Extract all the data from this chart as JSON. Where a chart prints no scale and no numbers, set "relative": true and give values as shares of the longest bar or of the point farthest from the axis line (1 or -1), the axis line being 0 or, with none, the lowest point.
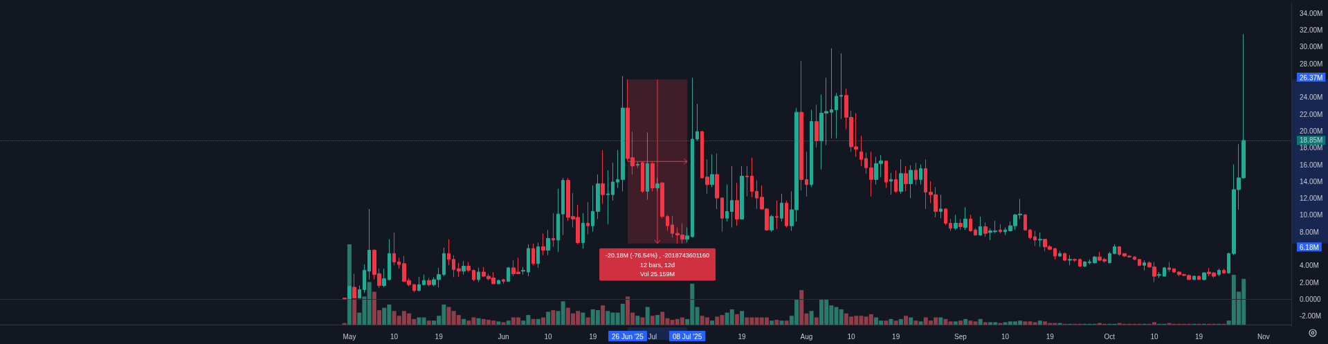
{
  "chart_data": [
    {
      "type": "candlestick",
      "x": [
        "2025-04-30",
        "2025-05-01",
        "2025-05-02",
        "2025-05-03",
        "2025-05-04",
        "2025-05-05",
        "2025-05-06",
        "2025-05-07",
        "2025-05-08",
        "2025-05-09",
        "2025-05-10",
        "2025-05-11",
        "2025-05-12",
        "2025-05-13",
        "2025-05-14",
        "2025-05-15",
        "2025-05-16",
        "2025-05-17",
        "2025-05-18",
        "2025-05-19",
        "2025-05-20",
        "2025-05-21",
        "2025-05-22",
        "2025-05-23",
        "2025-05-24",
        "2025-05-25",
        "2025-05-26",
        "2025-05-27",
        "2025-05-28",
        "2025-05-29",
        "2025-05-30",
        "2025-05-31",
        "2025-06-01",
        "2025-06-02",
        "2025-06-03",
        "2025-06-04",
        "2025-06-05",
        "2025-06-06",
        "2025-06-07",
        "2025-06-08",
        "2025-06-09",
        "2025-06-10",
        "2025-06-11",
        "2025-06-12",
        "2025-06-13",
        "2025-06-14",
        "2025-06-15",
        "2025-06-16",
        "2025-06-17",
        "2025-06-18",
        "2025-06-19",
        "2025-06-20",
        "2025-06-21",
        "2025-06-22",
        "2025-06-23",
        "2025-06-24",
        "2025-06-25",
        "2025-06-26",
        "2025-06-27",
        "2025-06-28",
        "2025-06-29",
        "2025-06-30",
        "2025-07-01",
        "2025-07-02",
        "2025-07-03",
        "2025-07-04",
        "2025-07-05",
        "2025-07-06",
        "2025-07-07",
        "2025-07-08",
        "2025-07-09",
        "2025-07-10",
        "2025-07-11",
        "2025-07-12",
        "2025-07-13",
        "2025-07-14",
        "2025-07-15",
        "2025-07-16",
        "2025-07-17",
        "2025-07-18",
        "2025-07-19",
        "2025-07-20",
        "2025-07-21",
        "2025-07-22",
        "2025-07-23",
        "2025-07-24",
        "2025-07-25",
        "2025-07-26",
        "2025-07-27",
        "2025-07-28",
        "2025-07-29",
        "2025-07-30",
        "2025-07-31",
        "2025-08-01",
        "2025-08-02",
        "2025-08-03",
        "2025-08-04",
        "2025-08-05",
        "2025-08-06",
        "2025-08-07",
        "2025-08-08",
        "2025-08-09",
        "2025-08-10",
        "2025-08-11",
        "2025-08-12",
        "2025-08-13",
        "2025-08-14",
        "2025-08-15",
        "2025-08-16",
        "2025-08-17",
        "2025-08-18",
        "2025-08-19",
        "2025-08-20",
        "2025-08-21",
        "2025-08-22",
        "2025-08-23",
        "2025-08-24",
        "2025-08-25",
        "2025-08-26",
        "2025-08-27",
        "2025-08-28",
        "2025-08-29",
        "2025-08-30",
        "2025-08-31",
        "2025-09-01",
        "2025-09-02",
        "2025-09-03",
        "2025-09-04",
        "2025-09-05",
        "2025-09-06",
        "2025-09-07",
        "2025-09-08",
        "2025-09-09",
        "2025-09-10",
        "2025-09-11",
        "2025-09-12",
        "2025-09-13",
        "2025-09-14",
        "2025-09-15",
        "2025-09-16",
        "2025-09-17",
        "2025-09-18",
        "2025-09-19",
        "2025-09-20",
        "2025-09-21",
        "2025-09-22",
        "2025-09-23",
        "2025-09-24",
        "2025-09-25",
        "2025-09-26",
        "2025-09-27",
        "2025-09-28",
        "2025-09-29",
        "2025-09-30",
        "2025-10-01",
        "2025-10-02",
        "2025-10-03",
        "2025-10-04",
        "2025-10-05",
        "2025-10-06",
        "2025-10-07",
        "2025-10-08",
        "2025-10-09",
        "2025-10-10",
        "2025-10-11",
        "2025-10-12",
        "2025-10-13",
        "2025-10-14",
        "2025-10-15",
        "2025-10-16",
        "2025-10-17",
        "2025-10-18",
        "2025-10-19",
        "2025-10-20",
        "2025-10-21",
        "2025-10-22",
        "2025-10-23",
        "2025-10-24",
        "2025-10-25",
        "2025-10-26",
        "2025-10-27",
        "2025-10-28"
      ],
      "ohlc": [
        [
          0.1,
          0.1,
          0.0,
          0.0
        ],
        [
          0.0,
          1.6,
          0.0,
          1.5
        ],
        [
          1.4,
          3.0,
          0.1,
          0.1
        ],
        [
          0.1,
          1.6,
          0.1,
          1.1
        ],
        [
          1.1,
          4.1,
          0.7,
          3.4
        ],
        [
          3.3,
          10.7,
          2.3,
          5.8
        ],
        [
          5.8,
          5.9,
          2.3,
          2.9
        ],
        [
          3.0,
          3.6,
          1.3,
          1.6
        ],
        [
          1.6,
          3.6,
          1.4,
          2.4
        ],
        [
          2.3,
          7.1,
          2.2,
          5.4
        ],
        [
          5.4,
          7.9,
          4.0,
          4.4
        ],
        [
          4.4,
          4.9,
          3.6,
          4.1
        ],
        [
          4.2,
          5.1,
          2.0,
          2.1
        ],
        [
          2.2,
          2.5,
          1.5,
          1.7
        ],
        [
          1.7,
          1.8,
          0.8,
          1.0
        ],
        [
          1.0,
          2.6,
          0.9,
          1.7
        ],
        [
          1.7,
          2.9,
          1.6,
          2.2
        ],
        [
          2.2,
          2.5,
          1.5,
          1.7
        ],
        [
          1.7,
          2.6,
          1.5,
          2.3
        ],
        [
          2.3,
          3.7,
          1.4,
          2.9
        ],
        [
          2.9,
          6.1,
          2.7,
          5.4
        ],
        [
          5.4,
          7.1,
          4.0,
          4.7
        ],
        [
          4.7,
          5.2,
          2.6,
          3.5
        ],
        [
          3.6,
          4.3,
          2.6,
          3.3
        ],
        [
          3.3,
          4.5,
          2.9,
          3.9
        ],
        [
          3.9,
          4.4,
          3.2,
          3.4
        ],
        [
          3.4,
          3.5,
          2.1,
          2.3
        ],
        [
          2.3,
          3.7,
          2.0,
          3.2
        ],
        [
          3.2,
          3.8,
          2.6,
          2.7
        ],
        [
          2.7,
          3.0,
          2.2,
          2.4
        ],
        [
          2.5,
          3.2,
          1.8,
          1.8
        ],
        [
          1.8,
          2.3,
          1.8,
          2.2
        ],
        [
          2.3,
          2.4,
          1.8,
          2.1
        ],
        [
          2.1,
          3.8,
          2.1,
          3.7
        ],
        [
          3.7,
          4.6,
          2.7,
          3.0
        ],
        [
          3.2,
          4.9,
          3.0,
          3.0
        ],
        [
          3.3,
          3.8,
          2.9,
          3.4
        ],
        [
          3.2,
          6.5,
          2.7,
          6.0
        ],
        [
          6.0,
          6.6,
          4.0,
          4.2
        ],
        [
          4.2,
          6.7,
          3.7,
          6.2
        ],
        [
          6.2,
          7.8,
          5.2,
          5.8
        ],
        [
          5.8,
          8.2,
          5.2,
          7.2
        ],
        [
          7.2,
          10.2,
          6.2,
          7.0
        ],
        [
          7.0,
          13.1,
          5.6,
          10.1
        ],
        [
          10.1,
          14.4,
          7.6,
          14.1
        ],
        [
          14.1,
          14.4,
          9.3,
          9.7
        ],
        [
          9.8,
          12.6,
          8.5,
          9.5
        ],
        [
          9.7,
          11.2,
          6.5,
          6.7
        ],
        [
          6.7,
          10.2,
          6.0,
          9.0
        ],
        [
          9.0,
          11.5,
          7.7,
          8.7
        ],
        [
          8.7,
          13.5,
          8.0,
          10.4
        ],
        [
          10.4,
          14.8,
          9.5,
          13.7
        ],
        [
          13.7,
          17.7,
          11.3,
          12.4
        ],
        [
          12.4,
          15.3,
          8.9,
          12.5
        ],
        [
          12.4,
          16.2,
          11.7,
          13.9
        ],
        [
          13.9,
          17.7,
          13.2,
          14.2
        ],
        [
          14.2,
          26.5,
          12.8,
          22.7
        ],
        [
          22.7,
          26.1,
          16.4,
          16.7
        ],
        [
          16.8,
          19.9,
          14.8,
          15.8
        ],
        [
          15.9,
          16.3,
          15.6,
          16.0
        ],
        [
          16.2,
          16.3,
          12.6,
          12.8
        ],
        [
          12.8,
          19.8,
          11.8,
          16.1
        ],
        [
          16.1,
          16.3,
          12.8,
          13.2
        ],
        [
          13.2,
          14.4,
          12.8,
          13.7
        ],
        [
          13.8,
          13.9,
          9.6,
          9.8
        ],
        [
          9.8,
          10.0,
          8.1,
          8.7
        ],
        [
          8.8,
          9.9,
          7.3,
          7.8
        ],
        [
          7.8,
          8.5,
          6.6,
          7.6
        ],
        [
          7.6,
          9.0,
          6.6,
          7.1
        ],
        [
          7.1,
          8.5,
          6.7,
          7.5
        ],
        [
          7.4,
          26.3,
          7.3,
          19.0
        ],
        [
          19.0,
          23.2,
          18.8,
          19.9
        ],
        [
          19.9,
          20.0,
          14.3,
          14.4
        ],
        [
          14.5,
          16.6,
          12.5,
          13.6
        ],
        [
          13.6,
          17.2,
          13.3,
          14.8
        ],
        [
          14.8,
          17.3,
          10.7,
          12.0
        ],
        [
          12.0,
          12.1,
          8.0,
          9.6
        ],
        [
          9.6,
          13.6,
          9.2,
          10.4
        ],
        [
          10.4,
          15.8,
          8.5,
          11.7
        ],
        [
          11.7,
          13.8,
          8.7,
          9.5
        ],
        [
          9.5,
          15.8,
          9.5,
          14.6
        ],
        [
          14.6,
          15.8,
          12.2,
          14.5
        ],
        [
          14.6,
          16.8,
          12.1,
          12.8
        ],
        [
          12.8,
          14.1,
          10.7,
          12.0
        ],
        [
          12.1,
          13.5,
          10.6,
          10.7
        ],
        [
          10.7,
          10.8,
          8.1,
          8.2
        ],
        [
          8.2,
          10.0,
          8.0,
          9.8
        ],
        [
          9.8,
          11.7,
          8.3,
          9.7
        ],
        [
          9.6,
          12.5,
          9.2,
          11.4
        ],
        [
          11.4,
          11.7,
          8.5,
          8.7
        ],
        [
          8.7,
          12.8,
          8.1,
          10.6
        ],
        [
          10.6,
          22.7,
          9.2,
          22.2
        ],
        [
          22.2,
          28.3,
          12.9,
          14.2
        ],
        [
          14.2,
          17.5,
          12.2,
          13.6
        ],
        [
          13.6,
          22.5,
          13.3,
          21.1
        ],
        [
          21.1,
          23.1,
          18.0,
          18.8
        ],
        [
          18.8,
          24.3,
          15.4,
          22.1
        ],
        [
          22.1,
          26.3,
          18.3,
          22.3
        ],
        [
          22.2,
          29.8,
          19.1,
          22.5
        ],
        [
          22.5,
          24.5,
          19.1,
          24.1
        ],
        [
          24.1,
          29.2,
          21.4,
          24.2
        ],
        [
          24.2,
          25.0,
          20.2,
          21.6
        ],
        [
          21.6,
          22.4,
          17.5,
          18.1
        ],
        [
          18.1,
          22.1,
          16.9,
          17.8
        ],
        [
          17.5,
          19.4,
          15.8,
          16.6
        ],
        [
          16.7,
          17.4,
          14.9,
          15.6
        ],
        [
          15.6,
          17.5,
          12.2,
          14.2
        ],
        [
          14.2,
          16.9,
          13.6,
          16.1
        ],
        [
          16.1,
          17.1,
          14.5,
          16.4
        ],
        [
          16.4,
          16.4,
          13.2,
          13.9
        ],
        [
          14.0,
          15.0,
          12.4,
          14.2
        ],
        [
          14.2,
          15.3,
          12.6,
          12.8
        ],
        [
          12.8,
          16.6,
          12.5,
          14.9
        ],
        [
          14.9,
          15.8,
          12.8,
          13.7
        ],
        [
          13.7,
          15.9,
          12.0,
          15.3
        ],
        [
          15.3,
          16.2,
          13.6,
          14.2
        ],
        [
          14.2,
          16.0,
          13.6,
          15.5
        ],
        [
          15.5,
          16.6,
          10.7,
          12.7
        ],
        [
          12.7,
          14.0,
          11.4,
          12.4
        ],
        [
          12.4,
          13.3,
          9.7,
          10.4
        ],
        [
          10.4,
          12.4,
          9.6,
          10.7
        ],
        [
          10.7,
          10.8,
          8.8,
          9.0
        ],
        [
          9.0,
          9.5,
          8.1,
          8.4
        ],
        [
          8.4,
          10.0,
          8.2,
          9.0
        ],
        [
          9.0,
          9.5,
          8.2,
          8.6
        ],
        [
          8.5,
          10.9,
          8.2,
          9.5
        ],
        [
          9.5,
          10.0,
          8.0,
          8.1
        ],
        [
          8.2,
          8.4,
          7.5,
          7.6
        ],
        [
          7.6,
          9.8,
          7.5,
          8.6
        ],
        [
          8.6,
          9.1,
          7.4,
          7.8
        ],
        [
          7.9,
          8.4,
          7.0,
          8.1
        ],
        [
          8.0,
          9.3,
          7.8,
          8.1
        ],
        [
          8.2,
          8.9,
          7.8,
          8.0
        ],
        [
          8.0,
          8.5,
          7.6,
          8.2
        ],
        [
          8.1,
          9.2,
          8.0,
          8.7
        ],
        [
          8.7,
          10.1,
          8.2,
          10.0
        ],
        [
          10.0,
          11.9,
          9.5,
          10.1
        ],
        [
          10.0,
          10.1,
          8.1,
          8.2
        ],
        [
          8.2,
          8.3,
          7.1,
          7.3
        ],
        [
          7.4,
          8.1,
          6.3,
          7.0
        ],
        [
          7.0,
          7.9,
          6.2,
          7.1
        ],
        [
          7.1,
          7.1,
          5.7,
          6.2
        ],
        [
          6.2,
          6.4,
          5.8,
          5.9
        ],
        [
          6.0,
          6.0,
          4.7,
          5.1
        ],
        [
          5.1,
          5.7,
          5.0,
          5.4
        ],
        [
          5.4,
          5.5,
          4.5,
          4.6
        ],
        [
          4.6,
          5.2,
          4.0,
          4.7
        ],
        [
          4.7,
          4.8,
          4.4,
          4.6
        ],
        [
          4.7,
          4.8,
          3.8,
          3.9
        ],
        [
          3.9,
          4.5,
          3.8,
          4.4
        ],
        [
          4.3,
          4.7,
          4.1,
          4.4
        ],
        [
          4.3,
          5.1,
          4.2,
          5.0
        ],
        [
          5.0,
          5.6,
          4.5,
          4.6
        ],
        [
          4.7,
          4.9,
          4.3,
          4.5
        ],
        [
          4.3,
          5.6,
          4.2,
          5.4
        ],
        [
          5.4,
          6.5,
          5.3,
          6.2
        ],
        [
          6.2,
          6.3,
          5.1,
          5.3
        ],
        [
          5.4,
          5.4,
          5.0,
          5.1
        ],
        [
          5.1,
          5.2,
          4.9,
          5.0
        ],
        [
          5.0,
          5.1,
          4.6,
          4.7
        ],
        [
          4.7,
          4.7,
          3.9,
          4.0
        ],
        [
          4.0,
          4.6,
          3.4,
          4.3
        ],
        [
          4.3,
          4.5,
          3.7,
          3.8
        ],
        [
          3.8,
          4.4,
          2.0,
          2.7
        ],
        [
          2.8,
          3.2,
          2.5,
          2.9
        ],
        [
          2.7,
          3.8,
          2.7,
          3.7
        ],
        [
          3.7,
          4.4,
          3.2,
          3.5
        ],
        [
          3.6,
          3.6,
          3.1,
          3.2
        ],
        [
          3.2,
          3.3,
          2.7,
          2.9
        ],
        [
          2.9,
          3.0,
          2.7,
          2.8
        ],
        [
          2.8,
          2.9,
          2.3,
          2.3
        ],
        [
          2.3,
          2.8,
          2.3,
          2.7
        ],
        [
          2.7,
          2.8,
          2.3,
          2.3
        ],
        [
          2.3,
          3.2,
          2.2,
          3.1
        ],
        [
          3.2,
          3.7,
          2.7,
          3.0
        ],
        [
          3.1,
          3.2,
          2.5,
          2.7
        ],
        [
          2.9,
          3.6,
          2.7,
          3.4
        ],
        [
          3.4,
          3.6,
          3.0,
          3.1
        ],
        [
          3.1,
          5.5,
          3.0,
          5.4
        ],
        [
          5.4,
          16.0,
          5.2,
          13.0
        ],
        [
          13.0,
          18.4,
          10.6,
          14.4
        ],
        [
          14.4,
          31.5,
          14.3,
          18.85
        ]
      ],
      "colors": [
        "#f23645",
        "#22ab94",
        "#f23645",
        "#22ab94",
        "#22ab94",
        "#22ab94",
        "#f23645",
        "#f23645",
        "#22ab94",
        "#22ab94",
        "#f23645",
        "#f23645",
        "#f23645",
        "#f23645",
        "#f23645",
        "#22ab94",
        "#22ab94",
        "#f23645",
        "#22ab94",
        "#22ab94",
        "#22ab94",
        "#f23645",
        "#f23645",
        "#f23645",
        "#22ab94",
        "#f23645",
        "#f23645",
        "#22ab94",
        "#f23645",
        "#f23645",
        "#f23645",
        "#22ab94",
        "#f23645",
        "#22ab94",
        "#f23645",
        "#f23645",
        "#22ab94",
        "#22ab94",
        "#f23645",
        "#22ab94",
        "#f23645",
        "#22ab94",
        "#f23645",
        "#22ab94",
        "#22ab94",
        "#f23645",
        "#f23645",
        "#f23645",
        "#22ab94",
        "#f23645",
        "#22ab94",
        "#22ab94",
        "#f23645",
        "#22ab94",
        "#22ab94",
        "#22ab94",
        "#22ab94",
        "#f23645",
        "#f23645",
        "#22ab94",
        "#f23645",
        "#22ab94",
        "#f23645",
        "#22ab94",
        "#f23645",
        "#f23645",
        "#f23645",
        "#f23645",
        "#f23645",
        "#22ab94",
        "#22ab94",
        "#22ab94",
        "#f23645",
        "#f23645",
        "#22ab94",
        "#f23645",
        "#f23645",
        "#22ab94",
        "#22ab94",
        "#f23645",
        "#22ab94",
        "#f23645",
        "#f23645",
        "#f23645",
        "#f23645",
        "#f23645",
        "#22ab94",
        "#f23645",
        "#22ab94",
        "#f23645",
        "#22ab94",
        "#22ab94",
        "#f23645",
        "#f23645",
        "#22ab94",
        "#f23645",
        "#22ab94",
        "#22ab94",
        "#22ab94",
        "#22ab94",
        "#22ab94",
        "#f23645",
        "#f23645",
        "#f23645",
        "#f23645",
        "#f23645",
        "#f23645",
        "#22ab94",
        "#22ab94",
        "#f23645",
        "#22ab94",
        "#f23645",
        "#22ab94",
        "#f23645",
        "#22ab94",
        "#f23645",
        "#22ab94",
        "#f23645",
        "#f23645",
        "#f23645",
        "#22ab94",
        "#f23645",
        "#f23645",
        "#22ab94",
        "#f23645",
        "#22ab94",
        "#f23645",
        "#f23645",
        "#22ab94",
        "#f23645",
        "#22ab94",
        "#22ab94",
        "#f23645",
        "#22ab94",
        "#22ab94",
        "#22ab94",
        "#22ab94",
        "#f23645",
        "#f23645",
        "#f23645",
        "#22ab94",
        "#f23645",
        "#f23645",
        "#f23645",
        "#22ab94",
        "#f23645",
        "#22ab94",
        "#f23645",
        "#f23645",
        "#22ab94",
        "#22ab94",
        "#22ab94",
        "#f23645",
        "#f23645",
        "#22ab94",
        "#22ab94",
        "#f23645",
        "#f23645",
        "#f23645",
        "#f23645",
        "#f23645",
        "#22ab94",
        "#f23645",
        "#f23645",
        "#22ab94",
        "#22ab94",
        "#f23645",
        "#f23645",
        "#f23645",
        "#f23645",
        "#f23645",
        "#22ab94",
        "#f23645",
        "#22ab94",
        "#f23645",
        "#f23645",
        "#22ab94",
        "#f23645",
        "#22ab94",
        "#22ab94",
        "#22ab94",
        "#22ab94"
      ],
      "xlim": [
        "2025-02-19T16:00",
        "2025-11-06T14:00"
      ],
      "xticks": [
        {
          "value": "2025-05-01",
          "label": "May"
        },
        {
          "value": "2025-05-10",
          "label": "10"
        },
        {
          "value": "2025-05-19",
          "label": "19"
        },
        {
          "value": "2025-06-01",
          "label": "Jun"
        },
        {
          "value": "2025-06-10",
          "label": "10"
        },
        {
          "value": "2025-06-19",
          "label": "19"
        },
        {
          "value": "2025-06-26",
          "label": "26 Jun '25"
        },
        {
          "value": "2025-07-01",
          "label": "Jul"
        },
        {
          "value": "2025-07-08",
          "label": "08 Jul '25"
        },
        {
          "value": "2025-07-19",
          "label": "19"
        },
        {
          "value": "2025-08-01",
          "label": "Aug"
        },
        {
          "value": "2025-08-10",
          "label": "10"
        },
        {
          "value": "2025-08-19",
          "label": "19"
        },
        {
          "value": "2025-09-01",
          "label": "Sep"
        },
        {
          "value": "2025-09-10",
          "label": "10"
        },
        {
          "value": "2025-09-19",
          "label": "19"
        },
        {
          "value": "2025-10-01",
          "label": "Oct"
        },
        {
          "value": "2025-10-10",
          "label": "10"
        },
        {
          "value": "2025-10-19",
          "label": "19"
        },
        {
          "value": "2025-11-01",
          "label": "Nov"
        }
      ],
      "ylim": [
        -3.3,
        35.3
      ],
      "yticks": [
        {
          "value": -2,
          "label": "-2.00M"
        },
        {
          "value": 0,
          "label": "0.0000"
        },
        {
          "value": 2,
          "label": "2.00M"
        },
        {
          "value": 4,
          "label": "4.00M"
        },
        {
          "value": 6.18,
          "label": "6.18M"
        },
        {
          "value": 8,
          "label": "8.00M"
        },
        {
          "value": 10,
          "label": "10.00M"
        },
        {
          "value": 12,
          "label": "12.00M"
        },
        {
          "value": 14,
          "label": "14.00M"
        },
        {
          "value": 16,
          "label": "16.00M"
        },
        {
          "value": 18,
          "label": "18.00M"
        },
        {
          "value": 20,
          "label": "20.00M"
        },
        {
          "value": 22,
          "label": "22.00M"
        },
        {
          "value": 24,
          "label": "24.00M"
        },
        {
          "value": 26.37,
          "label": "26.37M"
        },
        {
          "value": 28,
          "label": "28.00M"
        },
        {
          "value": 30,
          "label": "30.00M"
        },
        {
          "value": 32,
          "label": "32.00M"
        },
        {
          "value": 34,
          "label": "34.00M"
        }
      ],
      "ref_lines": [
        {
          "axis": "y",
          "value": 18.85,
          "label": "18.85M",
          "color": "#089981",
          "line_style": "dotted"
        }
      ],
      "bands": [
        {
          "axis": "x",
          "from": "2025-06-26",
          "to": "2025-07-08",
          "color": "#f23645"
        }
      ],
      "annotations": [
        "-20.18M (-76.54%) , -2018743601160",
        "12 bars, 12d",
        "Vol 25.159M"
      ]
    },
    {
      "type": "bar",
      "relative": true,
      "tick_labels": false,
      "x": [
        "2025-04-30",
        "2025-05-01",
        "2025-05-02",
        "2025-05-03",
        "2025-05-04",
        "2025-05-05",
        "2025-05-06",
        "2025-05-07",
        "2025-05-08",
        "2025-05-09",
        "2025-05-10",
        "2025-05-11",
        "2025-05-12",
        "2025-05-13",
        "2025-05-14",
        "2025-05-15",
        "2025-05-16",
        "2025-05-17",
        "2025-05-18",
        "2025-05-19",
        "2025-05-20",
        "2025-05-21",
        "2025-05-22",
        "2025-05-23",
        "2025-05-24",
        "2025-05-25",
        "2025-05-26",
        "2025-05-27",
        "2025-05-28",
        "2025-05-29",
        "2025-05-30",
        "2025-05-31",
        "2025-06-01",
        "2025-06-02",
        "2025-06-03",
        "2025-06-04",
        "2025-06-05",
        "2025-06-06",
        "2025-06-07",
        "2025-06-08",
        "2025-06-09",
        "2025-06-10",
        "2025-06-11",
        "2025-06-12",
        "2025-06-13",
        "2025-06-14",
        "2025-06-15",
        "2025-06-16",
        "2025-06-17",
        "2025-06-18",
        "2025-06-19",
        "2025-06-20",
        "2025-06-21",
        "2025-06-22",
        "2025-06-23",
        "2025-06-24",
        "2025-06-25",
        "2025-06-26",
        "2025-06-27",
        "2025-06-28",
        "2025-06-29",
        "2025-06-30",
        "2025-07-01",
        "2025-07-02",
        "2025-07-03",
        "2025-07-04",
        "2025-07-05",
        "2025-07-06",
        "2025-07-07",
        "2025-07-08",
        "2025-07-09",
        "2025-07-10",
        "2025-07-11",
        "2025-07-12",
        "2025-07-13",
        "2025-07-14",
        "2025-07-15",
        "2025-07-16",
        "2025-07-17",
        "2025-07-18",
        "2025-07-19",
        "2025-07-20",
        "2025-07-21",
        "2025-07-22",
        "2025-07-23",
        "2025-07-24",
        "2025-07-25",
        "2025-07-26",
        "2025-07-27",
        "2025-07-28",
        "2025-07-29",
        "2025-07-30",
        "2025-07-31",
        "2025-08-01",
        "2025-08-02",
        "2025-08-03",
        "2025-08-04",
        "2025-08-05",
        "2025-08-06",
        "2025-08-07",
        "2025-08-08",
        "2025-08-09",
        "2025-08-10",
        "2025-08-11",
        "2025-08-12",
        "2025-08-13",
        "2025-08-14",
        "2025-08-15",
        "2025-08-16",
        "2025-08-17",
        "2025-08-18",
        "2025-08-19",
        "2025-08-20",
        "2025-08-21",
        "2025-08-22",
        "2025-08-23",
        "2025-08-24",
        "2025-08-25",
        "2025-08-26",
        "2025-08-27",
        "2025-08-28",
        "2025-08-29",
        "2025-08-30",
        "2025-08-31",
        "2025-09-01",
        "2025-09-02",
        "2025-09-03",
        "2025-09-04",
        "2025-09-05",
        "2025-09-06",
        "2025-09-07",
        "2025-09-08",
        "2025-09-09",
        "2025-09-10",
        "2025-09-11",
        "2025-09-12",
        "2025-09-13",
        "2025-09-14",
        "2025-09-15",
        "2025-09-16",
        "2025-09-17",
        "2025-09-18",
        "2025-09-19",
        "2025-09-20",
        "2025-09-21",
        "2025-09-22",
        "2025-09-23",
        "2025-09-24",
        "2025-09-25",
        "2025-09-26",
        "2025-09-27",
        "2025-09-28",
        "2025-09-29",
        "2025-09-30",
        "2025-10-01",
        "2025-10-02",
        "2025-10-03",
        "2025-10-04",
        "2025-10-05",
        "2025-10-06",
        "2025-10-07",
        "2025-10-08",
        "2025-10-09",
        "2025-10-10",
        "2025-10-11",
        "2025-10-12",
        "2025-10-13",
        "2025-10-14",
        "2025-10-15",
        "2025-10-16",
        "2025-10-17",
        "2025-10-18",
        "2025-10-19",
        "2025-10-20",
        "2025-10-21",
        "2025-10-22",
        "2025-10-23",
        "2025-10-24",
        "2025-10-25",
        "2025-10-26",
        "2025-10-27",
        "2025-10-28"
      ],
      "values": [
        0.02,
        1.0,
        0.32,
        0.15,
        0.35,
        0.53,
        0.41,
        0.18,
        0.21,
        0.25,
        0.17,
        0.11,
        0.17,
        0.14,
        0.07,
        0.09,
        0.09,
        0.05,
        0.05,
        0.11,
        0.25,
        0.22,
        0.17,
        0.12,
        0.07,
        0.05,
        0.09,
        0.08,
        0.07,
        0.06,
        0.05,
        0.04,
        0.03,
        0.05,
        0.09,
        0.09,
        0.05,
        0.12,
        0.07,
        0.07,
        0.09,
        0.16,
        0.18,
        0.17,
        0.29,
        0.21,
        0.14,
        0.17,
        0.15,
        0.09,
        0.19,
        0.18,
        0.24,
        0.17,
        0.15,
        0.15,
        0.26,
        0.35,
        0.15,
        0.11,
        0.09,
        0.22,
        0.11,
        0.12,
        0.16,
        0.08,
        0.06,
        0.07,
        0.09,
        0.07,
        0.51,
        0.22,
        0.11,
        0.09,
        0.05,
        0.1,
        0.12,
        0.15,
        0.19,
        0.13,
        0.17,
        0.09,
        0.09,
        0.09,
        0.09,
        0.09,
        0.05,
        0.06,
        0.05,
        0.05,
        0.11,
        0.31,
        0.43,
        0.14,
        0.17,
        0.09,
        0.31,
        0.31,
        0.24,
        0.22,
        0.19,
        0.14,
        0.1,
        0.11,
        0.11,
        0.1,
        0.13,
        0.09,
        0.05,
        0.05,
        0.07,
        0.05,
        0.07,
        0.11,
        0.09,
        0.05,
        0.04,
        0.09,
        0.05,
        0.09,
        0.09,
        0.07,
        0.04,
        0.04,
        0.05,
        0.07,
        0.05,
        0.04,
        0.07,
        0.03,
        0.03,
        0.03,
        0.02,
        0.03,
        0.04,
        0.04,
        0.05,
        0.04,
        0.04,
        0.03,
        0.05,
        0.04,
        0.02,
        0.02,
        0.02,
        0.01,
        0.01,
        0.01,
        0.01,
        0.01,
        0.01,
        0.01,
        0.02,
        0.01,
        0.01,
        0.01,
        0.02,
        0.01,
        0.01,
        0.01,
        0.01,
        0.01,
        0.01,
        0.03,
        0.01,
        0.01,
        0.02,
        0.01,
        0.01,
        0.01,
        0.01,
        0.01,
        0.01,
        0.01,
        0.01,
        0.01,
        0.01,
        0.01,
        0.05,
        0.62,
        0.41,
        0.57
      ],
      "colors": [
        "#8f3d49",
        "#2a7a6c",
        "#8f3d49",
        "#2a7a6c",
        "#2a7a6c",
        "#2a7a6c",
        "#8f3d49",
        "#8f3d49",
        "#2a7a6c",
        "#2a7a6c",
        "#8f3d49",
        "#8f3d49",
        "#8f3d49",
        "#8f3d49",
        "#8f3d49",
        "#2a7a6c",
        "#2a7a6c",
        "#8f3d49",
        "#2a7a6c",
        "#2a7a6c",
        "#2a7a6c",
        "#8f3d49",
        "#8f3d49",
        "#8f3d49",
        "#2a7a6c",
        "#8f3d49",
        "#8f3d49",
        "#2a7a6c",
        "#8f3d49",
        "#8f3d49",
        "#8f3d49",
        "#2a7a6c",
        "#8f3d49",
        "#2a7a6c",
        "#8f3d49",
        "#8f3d49",
        "#2a7a6c",
        "#2a7a6c",
        "#8f3d49",
        "#2a7a6c",
        "#8f3d49",
        "#2a7a6c",
        "#8f3d49",
        "#2a7a6c",
        "#2a7a6c",
        "#8f3d49",
        "#8f3d49",
        "#8f3d49",
        "#2a7a6c",
        "#8f3d49",
        "#2a7a6c",
        "#2a7a6c",
        "#8f3d49",
        "#2a7a6c",
        "#2a7a6c",
        "#2a7a6c",
        "#2a7a6c",
        "#8f3d49",
        "#8f3d49",
        "#2a7a6c",
        "#8f3d49",
        "#2a7a6c",
        "#8f3d49",
        "#2a7a6c",
        "#8f3d49",
        "#8f3d49",
        "#8f3d49",
        "#8f3d49",
        "#8f3d49",
        "#2a7a6c",
        "#2a7a6c",
        "#2a7a6c",
        "#8f3d49",
        "#8f3d49",
        "#2a7a6c",
        "#8f3d49",
        "#8f3d49",
        "#2a7a6c",
        "#2a7a6c",
        "#8f3d49",
        "#2a7a6c",
        "#8f3d49",
        "#8f3d49",
        "#8f3d49",
        "#8f3d49",
        "#8f3d49",
        "#2a7a6c",
        "#8f3d49",
        "#2a7a6c",
        "#8f3d49",
        "#2a7a6c",
        "#2a7a6c",
        "#8f3d49",
        "#8f3d49",
        "#2a7a6c",
        "#8f3d49",
        "#2a7a6c",
        "#2a7a6c",
        "#2a7a6c",
        "#2a7a6c",
        "#2a7a6c",
        "#8f3d49",
        "#8f3d49",
        "#8f3d49",
        "#8f3d49",
        "#8f3d49",
        "#8f3d49",
        "#2a7a6c",
        "#2a7a6c",
        "#8f3d49",
        "#2a7a6c",
        "#8f3d49",
        "#2a7a6c",
        "#8f3d49",
        "#2a7a6c",
        "#8f3d49",
        "#2a7a6c",
        "#8f3d49",
        "#8f3d49",
        "#8f3d49",
        "#2a7a6c",
        "#8f3d49",
        "#8f3d49",
        "#2a7a6c",
        "#8f3d49",
        "#2a7a6c",
        "#8f3d49",
        "#8f3d49",
        "#2a7a6c",
        "#8f3d49",
        "#2a7a6c",
        "#2a7a6c",
        "#8f3d49",
        "#2a7a6c",
        "#2a7a6c",
        "#2a7a6c",
        "#2a7a6c",
        "#8f3d49",
        "#8f3d49",
        "#8f3d49",
        "#2a7a6c",
        "#8f3d49",
        "#8f3d49",
        "#8f3d49",
        "#2a7a6c",
        "#8f3d49",
        "#2a7a6c",
        "#8f3d49",
        "#8f3d49",
        "#2a7a6c",
        "#2a7a6c",
        "#2a7a6c",
        "#8f3d49",
        "#8f3d49",
        "#2a7a6c",
        "#2a7a6c",
        "#8f3d49",
        "#8f3d49",
        "#8f3d49",
        "#8f3d49",
        "#8f3d49",
        "#2a7a6c",
        "#8f3d49",
        "#8f3d49",
        "#2a7a6c",
        "#2a7a6c",
        "#8f3d49",
        "#8f3d49",
        "#8f3d49",
        "#8f3d49",
        "#8f3d49",
        "#2a7a6c",
        "#8f3d49",
        "#2a7a6c",
        "#8f3d49",
        "#8f3d49",
        "#2a7a6c",
        "#8f3d49",
        "#2a7a6c",
        "#2a7a6c",
        "#2a7a6c",
        "#2a7a6c"
      ],
      "xlim": [
        "2025-02-19T16:00",
        "2025-11-06T14:00"
      ]
    }
  ]
}
